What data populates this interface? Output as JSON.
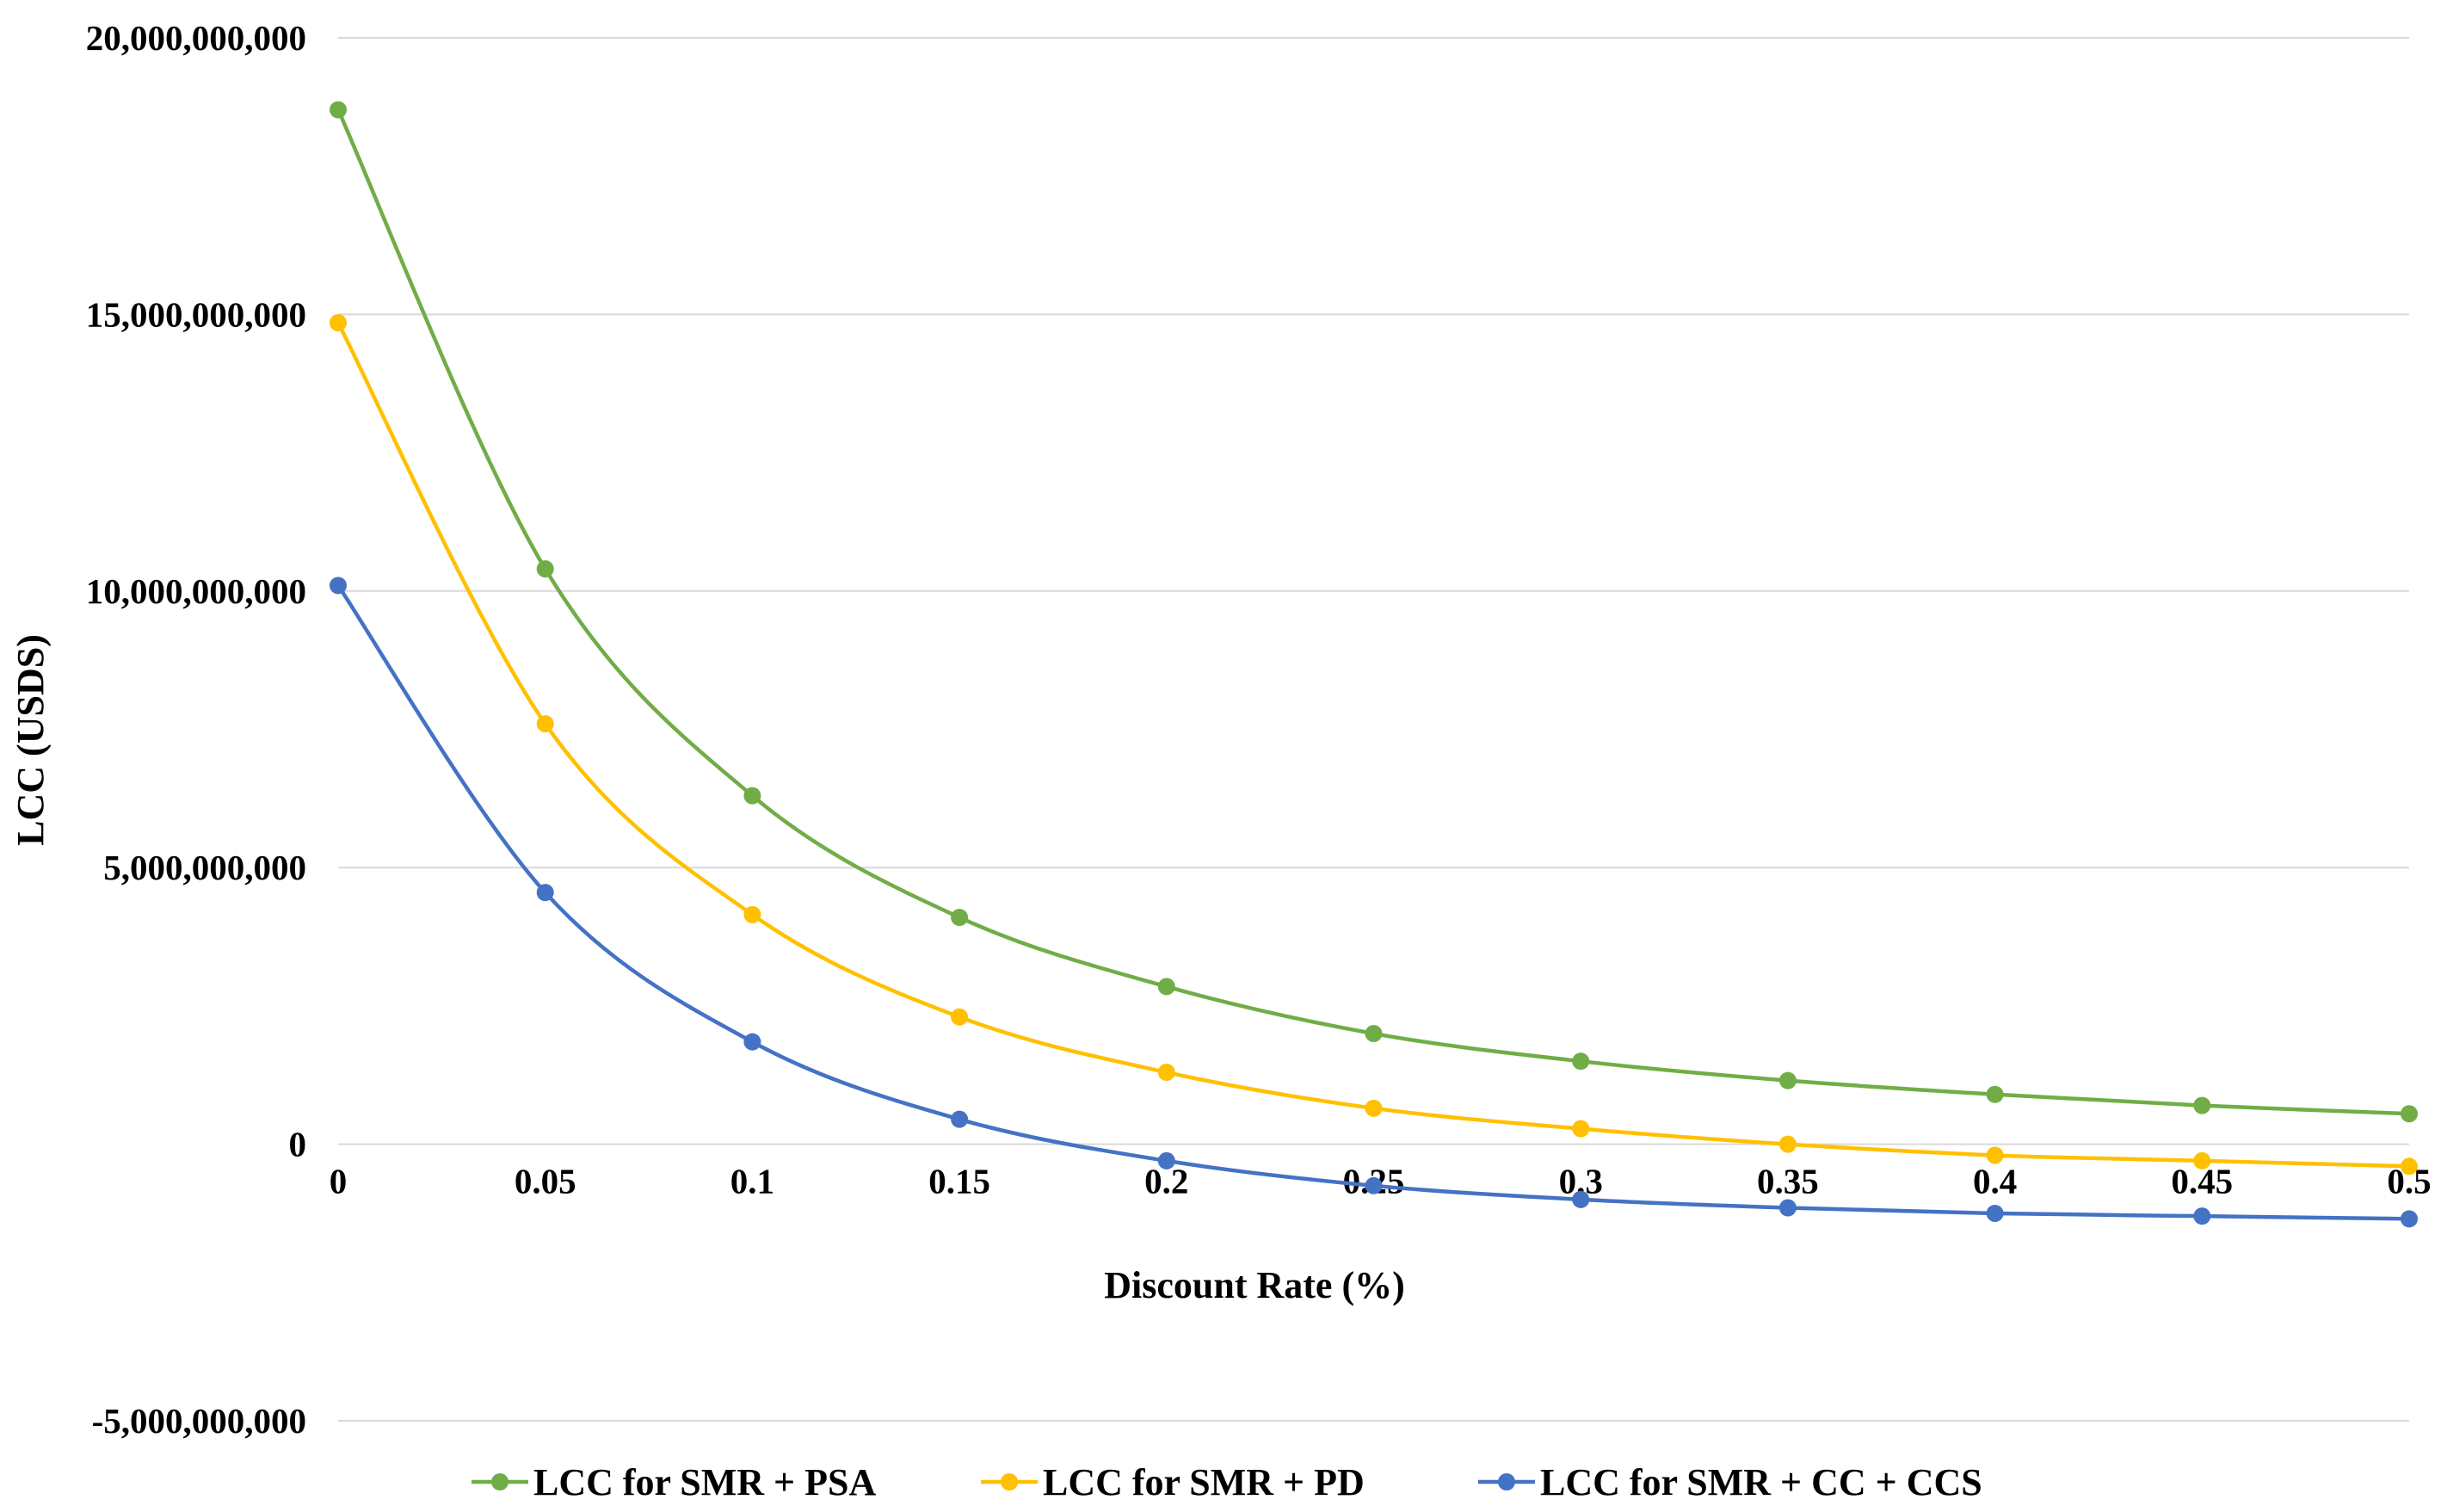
{
  "chart_data": {
    "type": "line",
    "title": "",
    "xlabel": "Discount Rate (%)",
    "ylabel": "LCC (USDS)",
    "x": [
      0,
      0.05,
      0.1,
      0.15,
      0.2,
      0.25,
      0.3,
      0.35,
      0.4,
      0.45,
      0.5
    ],
    "x_tick_labels": [
      "0",
      "0.05",
      "0.1",
      "0.15",
      "0.2",
      "0.25",
      "0.3",
      "0.35",
      "0.4",
      "0.45",
      "0.5"
    ],
    "y_ticks": [
      -5000000000,
      0,
      5000000000,
      10000000000,
      15000000000,
      20000000000
    ],
    "y_tick_labels": [
      "-5,000,000,000",
      "0",
      "5,000,000,000",
      "10,000,000,000",
      "15,000,000,000",
      "20,000,000,000"
    ],
    "ylim": [
      -5000000000,
      20000000000
    ],
    "xlim": [
      0,
      0.5
    ],
    "grid": true,
    "legend_position": "bottom",
    "series": [
      {
        "name": "LCC for SMR + PSA",
        "color": "#70ad47",
        "values": [
          18700000000,
          10400000000,
          6300000000,
          4100000000,
          2850000000,
          2000000000,
          1500000000,
          1150000000,
          900000000,
          700000000,
          550000000
        ]
      },
      {
        "name": "LCC for SMR + PD",
        "color": "#ffc000",
        "values": [
          14850000000,
          7600000000,
          4150000000,
          2300000000,
          1300000000,
          650000000,
          280000000,
          0,
          -200000000,
          -300000000,
          -400000000
        ]
      },
      {
        "name": "LCC for SMR + CC + CCS",
        "color": "#4472c4",
        "values": [
          10100000000,
          4550000000,
          1850000000,
          450000000,
          -300000000,
          -750000000,
          -1000000000,
          -1150000000,
          -1250000000,
          -1300000000,
          -1350000000
        ]
      }
    ]
  }
}
